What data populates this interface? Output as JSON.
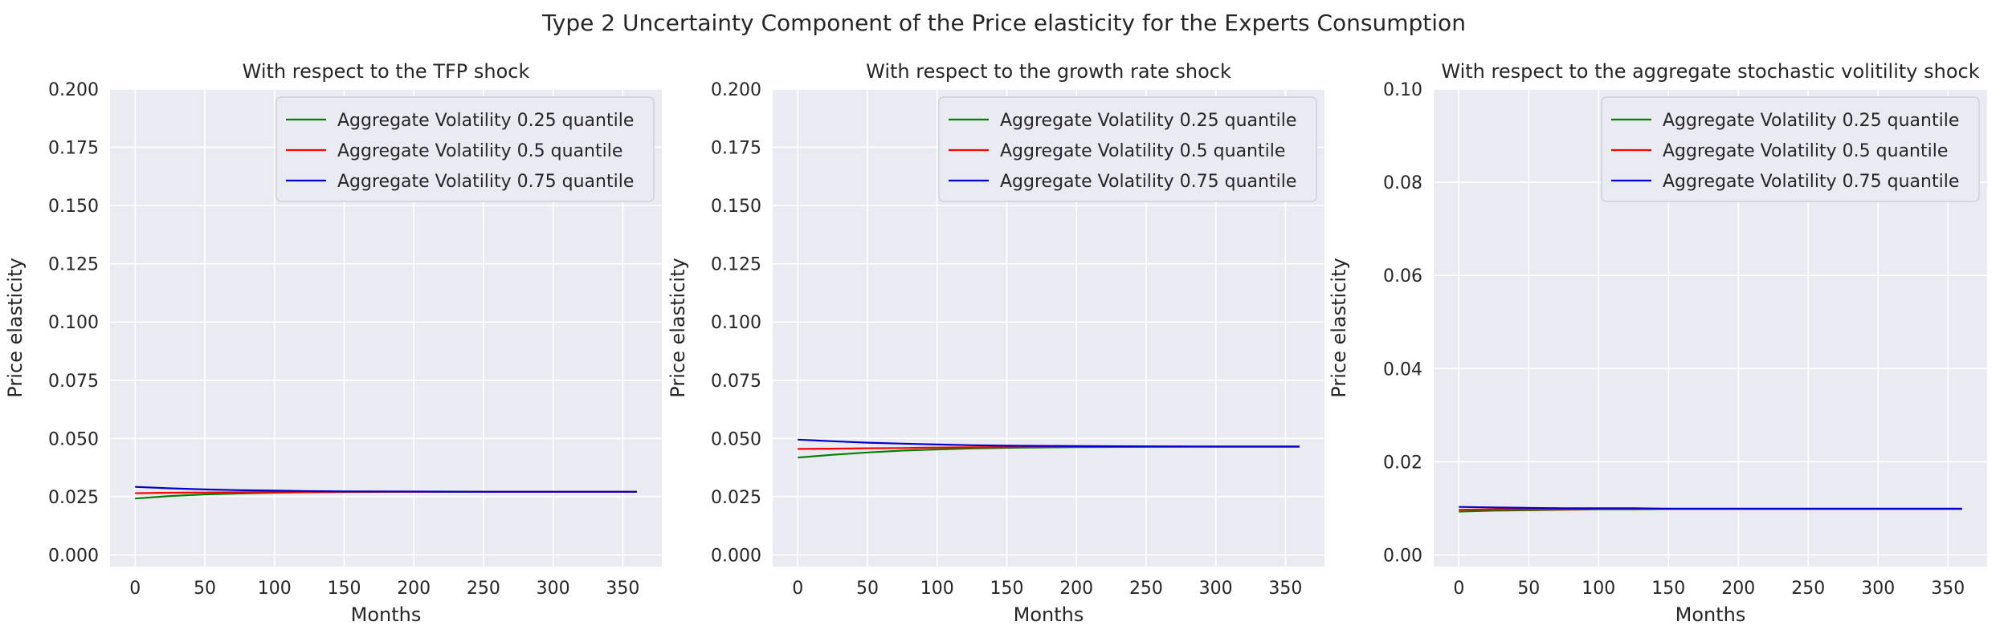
{
  "figure": {
    "suptitle": "Type 2 Uncertainty Component of the Price elasticity for the Experts Consumption"
  },
  "chart_data": [
    {
      "type": "line",
      "title": "With respect to the TFP shock",
      "xlabel": "Months",
      "ylabel": "Price elasticity",
      "xlim": [
        -18,
        378
      ],
      "ylim": [
        -0.005,
        0.2
      ],
      "xticks": [
        0,
        50,
        100,
        150,
        200,
        250,
        300,
        350
      ],
      "yticks": [
        0.0,
        0.025,
        0.05,
        0.075,
        0.1,
        0.125,
        0.15,
        0.175,
        0.2
      ],
      "ytick_labels": [
        "0.000",
        "0.025",
        "0.050",
        "0.075",
        "0.100",
        "0.125",
        "0.150",
        "0.175",
        "0.200"
      ],
      "grid": true,
      "legend_position": "upper right",
      "x": [
        0,
        25,
        50,
        75,
        100,
        125,
        150,
        200,
        250,
        300,
        360
      ],
      "series": [
        {
          "name": "Aggregate Volatility 0.25 quantile",
          "color": "#008000",
          "values": [
            0.0242,
            0.0253,
            0.026,
            0.0264,
            0.0267,
            0.0269,
            0.027,
            0.0271,
            0.0271,
            0.0271,
            0.0271
          ]
        },
        {
          "name": "Aggregate Volatility 0.5 quantile",
          "color": "#ff0000",
          "values": [
            0.0265,
            0.0267,
            0.0268,
            0.0269,
            0.027,
            0.027,
            0.0271,
            0.0271,
            0.0271,
            0.0271,
            0.0271
          ]
        },
        {
          "name": "Aggregate Volatility 0.75 quantile",
          "color": "#0000cc",
          "values": [
            0.0292,
            0.0286,
            0.0281,
            0.0278,
            0.0276,
            0.0274,
            0.0273,
            0.0272,
            0.0271,
            0.0271,
            0.0271
          ]
        }
      ]
    },
    {
      "type": "line",
      "title": "With respect to the growth rate shock",
      "xlabel": "Months",
      "ylabel": "Price elasticity",
      "xlim": [
        -18,
        378
      ],
      "ylim": [
        -0.005,
        0.2
      ],
      "xticks": [
        0,
        50,
        100,
        150,
        200,
        250,
        300,
        350
      ],
      "yticks": [
        0.0,
        0.025,
        0.05,
        0.075,
        0.1,
        0.125,
        0.15,
        0.175,
        0.2
      ],
      "ytick_labels": [
        "0.000",
        "0.025",
        "0.050",
        "0.075",
        "0.100",
        "0.125",
        "0.150",
        "0.175",
        "0.200"
      ],
      "grid": true,
      "legend_position": "upper right",
      "x": [
        0,
        25,
        50,
        75,
        100,
        125,
        150,
        200,
        250,
        300,
        360
      ],
      "series": [
        {
          "name": "Aggregate Volatility 0.25 quantile",
          "color": "#008000",
          "values": [
            0.0418,
            0.043,
            0.044,
            0.0448,
            0.0453,
            0.0457,
            0.046,
            0.0463,
            0.0464,
            0.0465,
            0.0465
          ]
        },
        {
          "name": "Aggregate Volatility 0.5 quantile",
          "color": "#ff0000",
          "values": [
            0.0455,
            0.0456,
            0.0458,
            0.0459,
            0.0461,
            0.0462,
            0.0463,
            0.0464,
            0.0465,
            0.0465,
            0.0465
          ]
        },
        {
          "name": "Aggregate Volatility 0.75 quantile",
          "color": "#0000cc",
          "values": [
            0.0495,
            0.0488,
            0.0482,
            0.0478,
            0.0474,
            0.0471,
            0.0469,
            0.0467,
            0.0466,
            0.0465,
            0.0465
          ]
        }
      ]
    },
    {
      "type": "line",
      "title": "With respect to the aggregate stochastic volitility shock",
      "xlabel": "Months",
      "ylabel": "Price elasticity",
      "xlim": [
        -18,
        378
      ],
      "ylim": [
        -0.0025,
        0.1
      ],
      "xticks": [
        0,
        50,
        100,
        150,
        200,
        250,
        300,
        350
      ],
      "yticks": [
        0.0,
        0.02,
        0.04,
        0.06,
        0.08,
        0.1
      ],
      "ytick_labels": [
        "0.00",
        "0.02",
        "0.04",
        "0.06",
        "0.08",
        "0.10"
      ],
      "grid": true,
      "legend_position": "upper right",
      "x": [
        0,
        25,
        50,
        75,
        100,
        125,
        150,
        200,
        250,
        300,
        360
      ],
      "series": [
        {
          "name": "Aggregate Volatility 0.25 quantile",
          "color": "#008000",
          "values": [
            0.0093,
            0.0095,
            0.0096,
            0.0097,
            0.0098,
            0.0098,
            0.0099,
            0.0099,
            0.0099,
            0.0099,
            0.0099
          ]
        },
        {
          "name": "Aggregate Volatility 0.5 quantile",
          "color": "#ff0000",
          "values": [
            0.0097,
            0.0098,
            0.0098,
            0.0098,
            0.0099,
            0.0099,
            0.0099,
            0.0099,
            0.0099,
            0.0099,
            0.0099
          ]
        },
        {
          "name": "Aggregate Volatility 0.75 quantile",
          "color": "#0000cc",
          "values": [
            0.0103,
            0.0102,
            0.0101,
            0.01,
            0.01,
            0.01,
            0.0099,
            0.0099,
            0.0099,
            0.0099,
            0.0099
          ]
        }
      ]
    }
  ]
}
